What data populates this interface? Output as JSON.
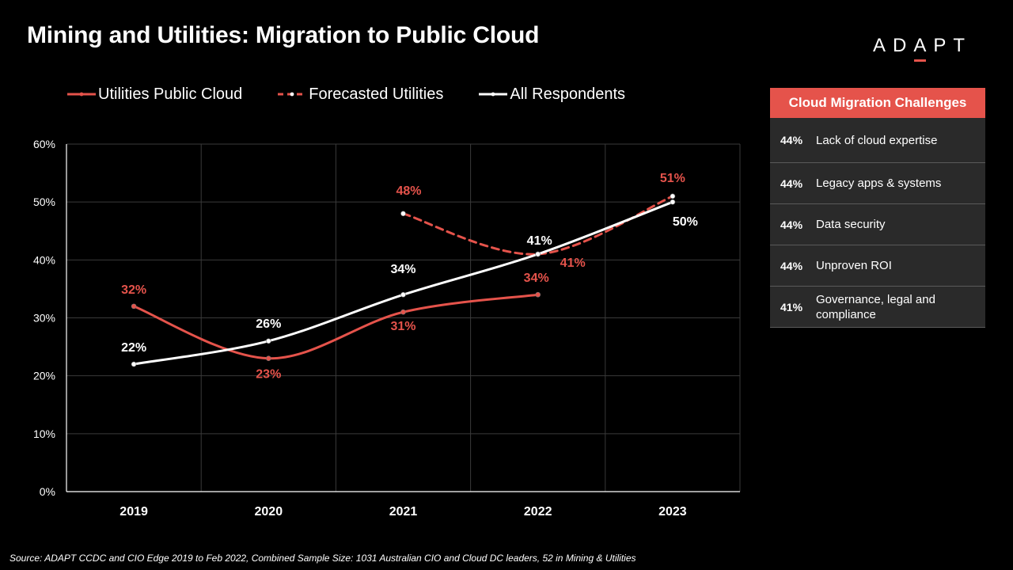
{
  "header": {
    "title": "Mining and Utilities: Migration to Public Cloud",
    "logo_text": "ADAPT"
  },
  "colors": {
    "background": "#000000",
    "red": "#e5534b",
    "white": "#ffffff",
    "grid": "#3a3a3a",
    "panel_row": "#2a2a2a"
  },
  "legend": [
    {
      "label": "Utilities Public Cloud",
      "style": "solid",
      "color": "#e5534b"
    },
    {
      "label": "Forecasted Utilities",
      "style": "dashed",
      "color": "#e5534b"
    },
    {
      "label": "All Respondents",
      "style": "solid",
      "color": "#ffffff"
    }
  ],
  "chart_data": {
    "type": "line",
    "x": [
      "2019",
      "2020",
      "2021",
      "2022",
      "2023"
    ],
    "y_ticks": [
      "0%",
      "10%",
      "20%",
      "30%",
      "40%",
      "50%",
      "60%"
    ],
    "ylim": [
      0,
      60
    ],
    "grid": true,
    "legend_position": "top",
    "series": [
      {
        "name": "Utilities Public Cloud",
        "color": "#e5534b",
        "dashed": false,
        "values": [
          32,
          23,
          31,
          34,
          null
        ],
        "labels": [
          "32%",
          "23%",
          "31%",
          "34%",
          ""
        ]
      },
      {
        "name": "Forecasted Utilities",
        "color": "#e5534b",
        "dashed": true,
        "values": [
          null,
          null,
          48,
          41,
          51
        ],
        "labels": [
          "",
          "",
          "48%",
          "41%",
          "51%"
        ]
      },
      {
        "name": "All Respondents",
        "color": "#ffffff",
        "dashed": false,
        "values": [
          22,
          26,
          34,
          41,
          50
        ],
        "labels": [
          "22%",
          "26%",
          "34%",
          "41%",
          "50%"
        ]
      }
    ]
  },
  "panel": {
    "title": "Cloud Migration Challenges",
    "items": [
      {
        "pct": "44%",
        "text": "Lack of cloud expertise"
      },
      {
        "pct": "44%",
        "text": "Legacy apps & systems"
      },
      {
        "pct": "44%",
        "text": "Data security"
      },
      {
        "pct": "44%",
        "text": "Unproven ROI"
      },
      {
        "pct": "41%",
        "text": "Governance, legal and compliance"
      }
    ]
  },
  "footer": {
    "source": "Source: ADAPT CCDC and CIO Edge 2019  to Feb 2022, Combined Sample Size: 1031 Australian CIO and Cloud DC leaders, 52 in Mining & Utilities"
  }
}
